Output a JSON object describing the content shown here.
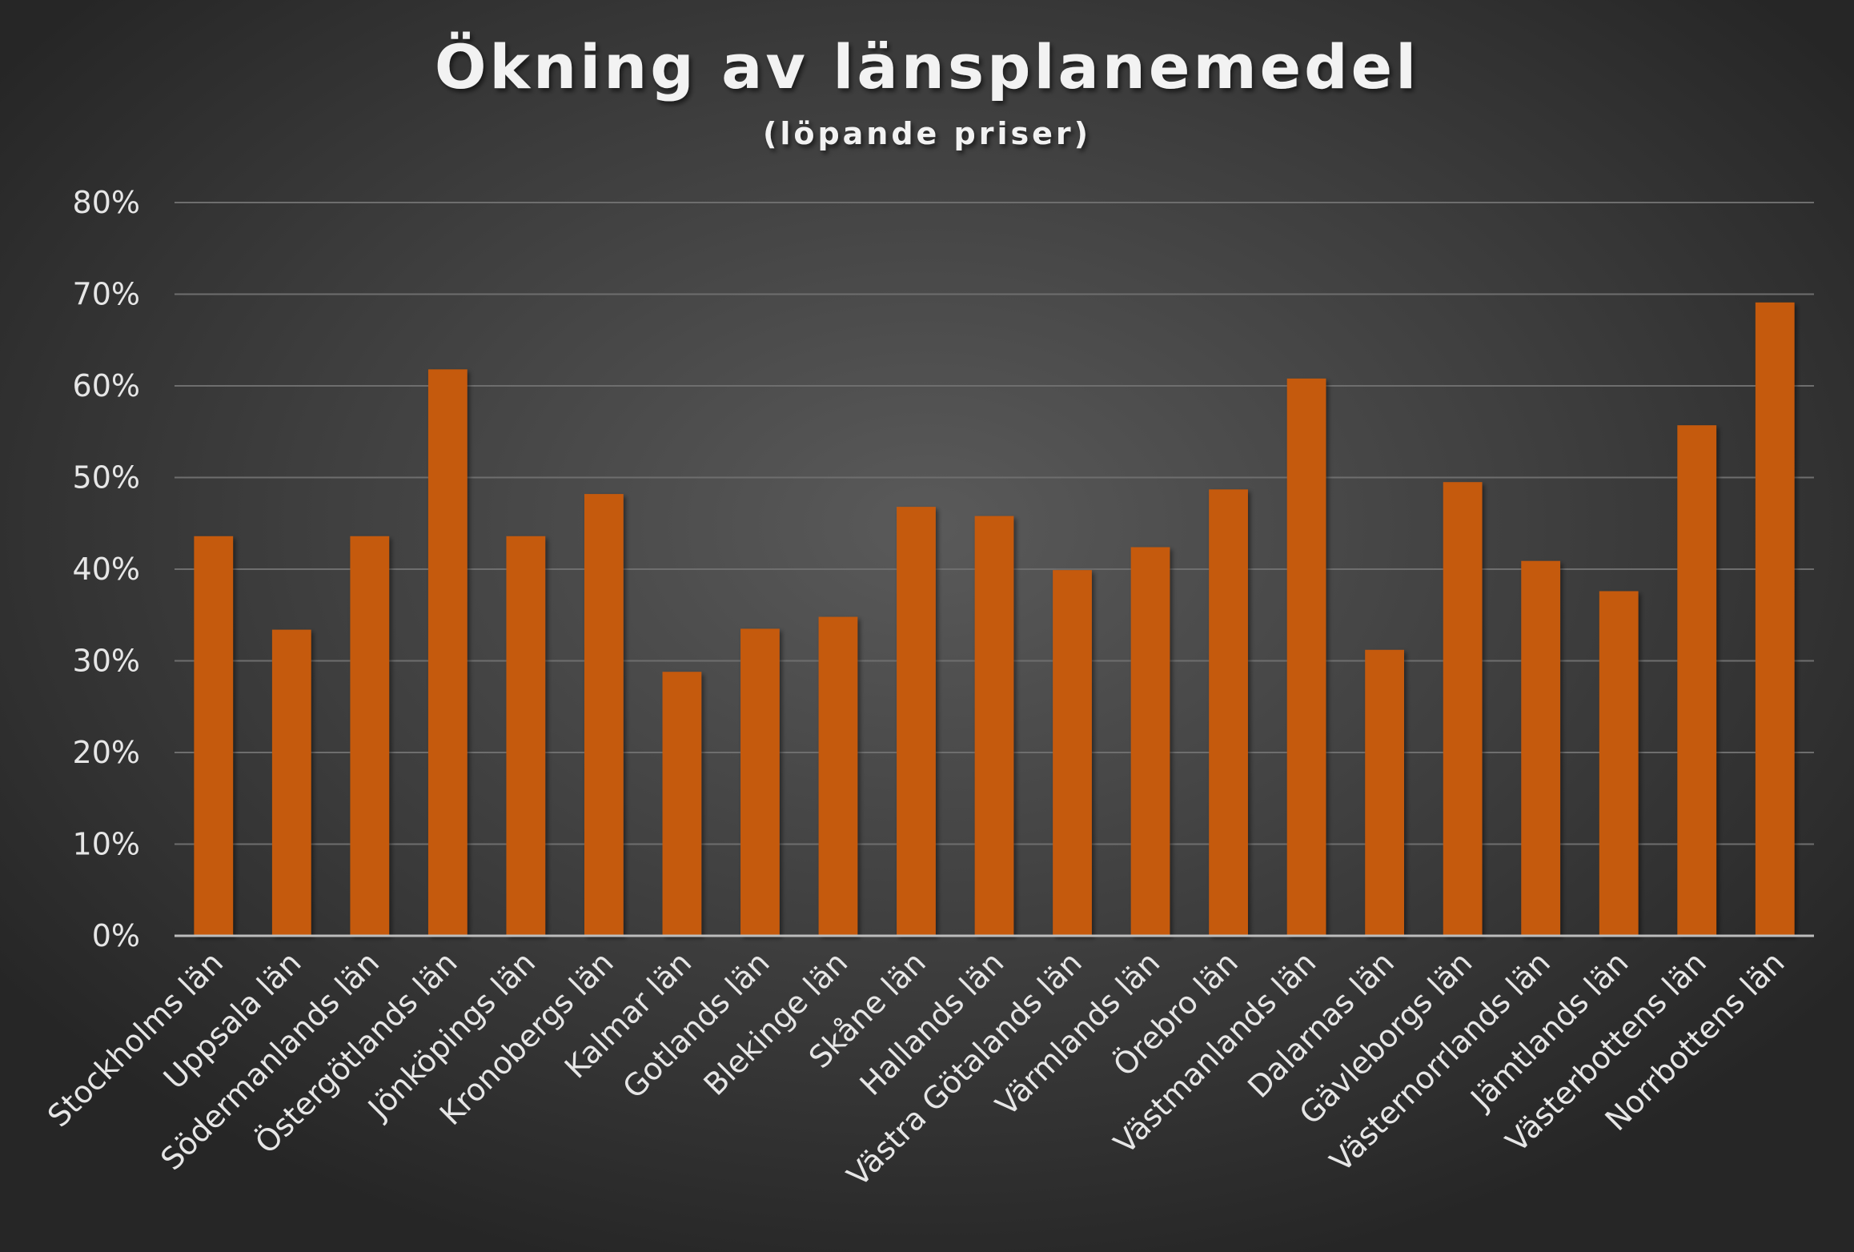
{
  "chart_data": {
    "type": "bar",
    "title": "Ökning av länsplanemedel",
    "subtitle": "(löpande priser)",
    "xlabel": "",
    "ylabel": "",
    "ylim": [
      0,
      80
    ],
    "y_ticks": [
      "0%",
      "10%",
      "20%",
      "30%",
      "40%",
      "50%",
      "60%",
      "70%",
      "80%"
    ],
    "y_unit": "%",
    "grid": true,
    "legend": "none",
    "bar_color": "#c55a11",
    "categories": [
      "Stockholms län",
      "Uppsala län",
      "Södermanlands län",
      "Östergötlands län",
      "Jönköpings län",
      "Kronobergs län",
      "Kalmar län",
      "Gotlands län",
      "Blekinge län",
      "Skåne län",
      "Hallands län",
      "Västra Götalands län",
      "Värmlands län",
      "Örebro län",
      "Västmanlands län",
      "Dalarnas län",
      "Gävleborgs län",
      "Västernorrlands län",
      "Jämtlands län",
      "Västerbottens län",
      "Norrbottens län"
    ],
    "values": [
      43.6,
      33.4,
      43.6,
      61.8,
      43.6,
      48.2,
      28.8,
      33.5,
      34.8,
      46.8,
      45.8,
      39.9,
      42.4,
      48.7,
      60.8,
      31.2,
      49.5,
      40.9,
      37.6,
      55.7,
      69.1
    ]
  }
}
